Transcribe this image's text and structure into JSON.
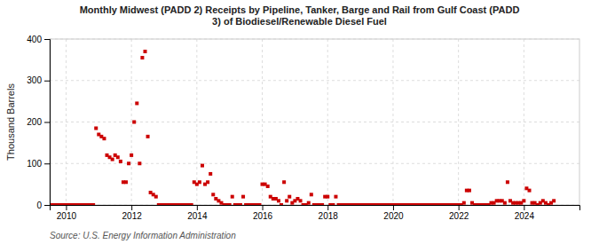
{
  "chart_data": {
    "type": "scatter",
    "title": "Monthly Midwest (PADD 2) Receipts by Pipeline, Tanker, Barge and Rail from Gulf Coast (PADD\n3) of Biodiesel/Renewable Diesel Fuel",
    "ylabel": "Thousand Barrels",
    "source": "Source: U.S. Energy Information Administration",
    "color": "#cc0000",
    "marker": "square",
    "grid": true,
    "xlim": [
      2009.5,
      2025.7
    ],
    "xticks": [
      2010,
      2012,
      2014,
      2016,
      2018,
      2020,
      2022,
      2024
    ],
    "ylim": [
      0,
      400
    ],
    "yticks": [
      0,
      100,
      200,
      300,
      400
    ],
    "x": [
      2009.583,
      2009.667,
      2009.75,
      2009.833,
      2009.917,
      2010.0,
      2010.083,
      2010.167,
      2010.25,
      2010.333,
      2010.417,
      2010.5,
      2010.583,
      2010.667,
      2010.75,
      2010.833,
      2010.917,
      2011.0,
      2011.083,
      2011.167,
      2011.25,
      2011.333,
      2011.417,
      2011.5,
      2011.583,
      2011.667,
      2011.75,
      2011.833,
      2011.917,
      2012.0,
      2012.083,
      2012.167,
      2012.25,
      2012.333,
      2012.417,
      2012.5,
      2012.583,
      2012.667,
      2012.75,
      2012.833,
      2012.917,
      2013.0,
      2013.083,
      2013.167,
      2013.25,
      2013.333,
      2013.417,
      2013.5,
      2013.583,
      2013.667,
      2013.75,
      2013.833,
      2013.917,
      2014.0,
      2014.083,
      2014.167,
      2014.25,
      2014.333,
      2014.417,
      2014.5,
      2014.583,
      2014.667,
      2014.75,
      2014.833,
      2014.917,
      2015.0,
      2015.083,
      2015.167,
      2015.25,
      2015.333,
      2015.417,
      2015.5,
      2015.583,
      2015.667,
      2015.75,
      2015.833,
      2015.917,
      2016.0,
      2016.083,
      2016.167,
      2016.25,
      2016.333,
      2016.417,
      2016.5,
      2016.583,
      2016.667,
      2016.75,
      2016.833,
      2016.917,
      2017.0,
      2017.083,
      2017.167,
      2017.25,
      2017.333,
      2017.417,
      2017.5,
      2017.583,
      2017.667,
      2017.75,
      2017.833,
      2017.917,
      2018.0,
      2018.083,
      2018.167,
      2018.25,
      2018.333,
      2018.417,
      2018.5,
      2018.583,
      2018.667,
      2018.75,
      2018.833,
      2018.917,
      2019.0,
      2019.083,
      2019.167,
      2019.25,
      2019.333,
      2019.417,
      2019.5,
      2019.583,
      2019.667,
      2019.75,
      2019.833,
      2019.917,
      2020.0,
      2020.083,
      2020.167,
      2020.25,
      2020.333,
      2020.417,
      2020.5,
      2020.583,
      2020.667,
      2020.75,
      2020.833,
      2020.917,
      2021.0,
      2021.083,
      2021.167,
      2021.25,
      2021.333,
      2021.417,
      2021.5,
      2021.583,
      2021.667,
      2021.75,
      2021.833,
      2021.917,
      2022.0,
      2022.083,
      2022.167,
      2022.25,
      2022.333,
      2022.417,
      2022.5,
      2022.583,
      2022.667,
      2022.75,
      2022.833,
      2022.917,
      2023.0,
      2023.083,
      2023.167,
      2023.25,
      2023.333,
      2023.417,
      2023.5,
      2023.583,
      2023.667,
      2023.75,
      2023.833,
      2023.917,
      2024.0,
      2024.083,
      2024.167,
      2024.25,
      2024.333,
      2024.417,
      2024.5,
      2024.583,
      2024.667,
      2024.75,
      2024.833,
      2024.917
    ],
    "values": [
      0,
      0,
      0,
      0,
      0,
      0,
      0,
      0,
      0,
      0,
      0,
      0,
      0,
      0,
      0,
      0,
      185,
      170,
      165,
      160,
      120,
      115,
      110,
      120,
      115,
      105,
      55,
      55,
      100,
      120,
      200,
      245,
      100,
      355,
      370,
      165,
      30,
      25,
      20,
      0,
      0,
      0,
      0,
      0,
      0,
      0,
      0,
      0,
      0,
      0,
      0,
      0,
      55,
      50,
      55,
      95,
      50,
      55,
      75,
      25,
      15,
      10,
      5,
      0,
      0,
      0,
      20,
      0,
      0,
      0,
      20,
      0,
      0,
      0,
      0,
      0,
      0,
      50,
      50,
      45,
      20,
      15,
      15,
      10,
      0,
      55,
      10,
      20,
      5,
      10,
      15,
      10,
      0,
      0,
      5,
      25,
      0,
      0,
      0,
      0,
      20,
      20,
      0,
      0,
      20,
      0,
      0,
      0,
      0,
      0,
      0,
      0,
      0,
      0,
      0,
      0,
      0,
      0,
      0,
      0,
      0,
      0,
      0,
      0,
      0,
      0,
      0,
      0,
      0,
      0,
      0,
      0,
      0,
      0,
      0,
      0,
      0,
      0,
      0,
      0,
      0,
      0,
      0,
      0,
      0,
      0,
      0,
      0,
      0,
      0,
      0,
      5,
      35,
      35,
      5,
      0,
      0,
      0,
      0,
      0,
      0,
      5,
      5,
      10,
      10,
      10,
      5,
      55,
      10,
      5,
      5,
      5,
      5,
      10,
      40,
      35,
      5,
      5,
      0,
      5,
      10,
      5,
      0,
      5,
      10
    ]
  }
}
